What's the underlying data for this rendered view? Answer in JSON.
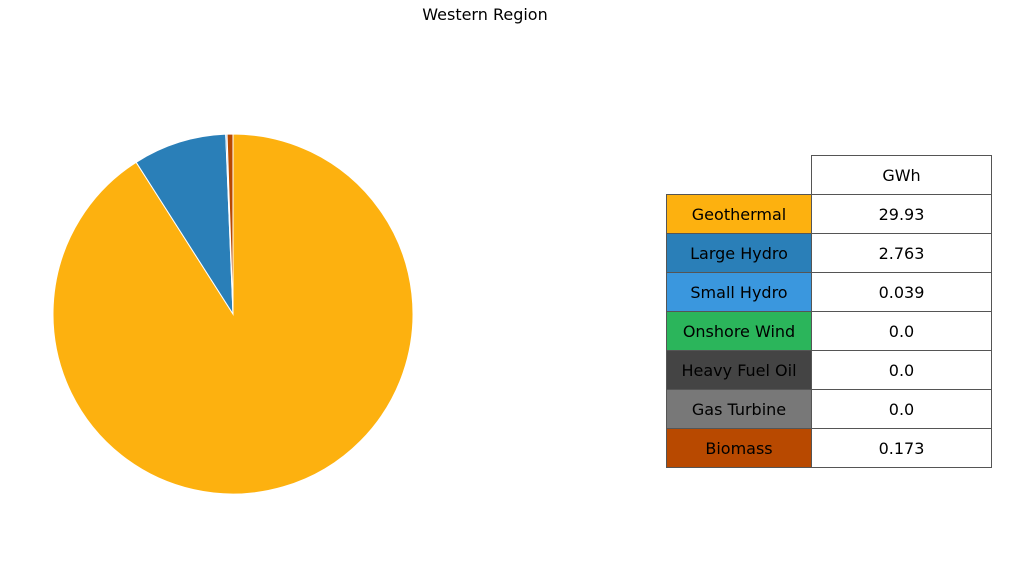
{
  "chart_data": {
    "type": "pie",
    "title": "Western Region",
    "categories": [
      "Geothermal",
      "Large Hydro",
      "Small Hydro",
      "Onshore Wind",
      "Heavy Fuel Oil",
      "Gas Turbine",
      "Biomass"
    ],
    "values": [
      29.93,
      2.763,
      0.039,
      0.0,
      0.0,
      0.0,
      0.173
    ],
    "value_labels": [
      "29.93",
      "2.763",
      "0.039",
      "0.0",
      "0.0",
      "0.0",
      "0.173"
    ],
    "colors": [
      "#FDB10F",
      "#2A7FB8",
      "#3A97DE",
      "#2BB55B",
      "#444444",
      "#787878",
      "#B84900"
    ],
    "table_header": "GWh",
    "direction": "clockwise from top"
  }
}
